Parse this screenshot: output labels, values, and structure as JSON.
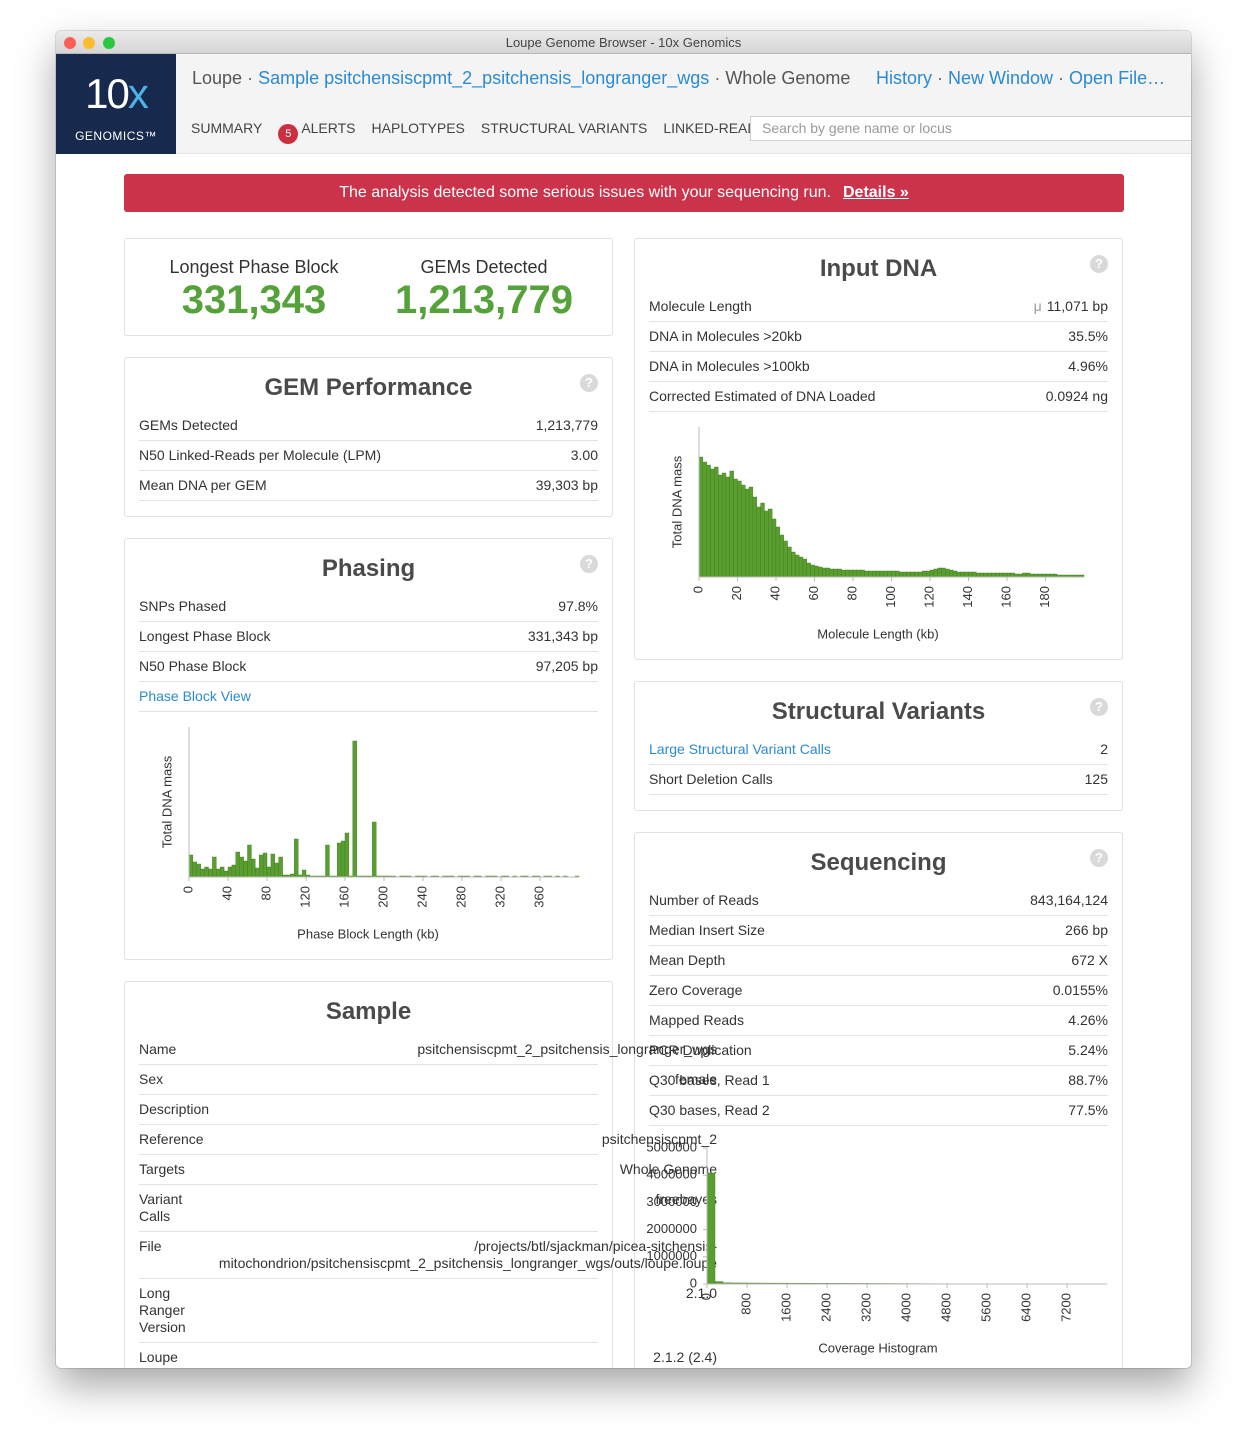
{
  "window": {
    "title": "Loupe Genome Browser - 10x Genomics"
  },
  "logo": {
    "mark": "10",
    "accent": "x",
    "wordmark": "GENOMICS™"
  },
  "header": {
    "crumbs": [
      "Loupe",
      "Sample psitchensiscpmt_2_psitchensis_longranger_wgs",
      "Whole Genome"
    ],
    "separator": "·",
    "actions": [
      "History",
      "New Window",
      "Open File…"
    ]
  },
  "nav": {
    "items": [
      "SUMMARY",
      "ALERTS",
      "HAPLOTYPES",
      "STRUCTURAL VARIANTS",
      "LINKED-READS"
    ],
    "alert_count": "5",
    "search_placeholder": "Search by gene name or locus"
  },
  "alert": {
    "message": "The analysis detected some serious issues with your sequencing run.",
    "link": "Details »"
  },
  "help": "?",
  "highlights": [
    {
      "label": "Longest Phase Block",
      "value": "331,343"
    },
    {
      "label": "GEMs Detected",
      "value": "1,213,779"
    }
  ],
  "gem_performance": {
    "title": "GEM Performance",
    "rows": [
      {
        "label": "GEMs Detected",
        "value": "1,213,779"
      },
      {
        "label": "N50 Linked-Reads per Molecule (LPM)",
        "value": "3.00"
      },
      {
        "label": "Mean DNA per GEM",
        "value": "39,303 bp"
      }
    ]
  },
  "phasing": {
    "title": "Phasing",
    "rows": [
      {
        "label": "SNPs Phased",
        "value": "97.8%"
      },
      {
        "label": "Longest Phase Block",
        "value": "331,343 bp"
      },
      {
        "label": "N50 Phase Block",
        "value": "97,205 bp"
      }
    ],
    "link": "Phase Block View",
    "chart_data": {
      "type": "histogram",
      "x_label": "Phase Block Length (kb)",
      "y_label": "Total DNA mass",
      "color": "#5a9e2f",
      "bins": [
        0,
        4,
        8,
        12,
        16,
        20,
        24,
        28,
        32,
        36,
        40,
        44,
        48,
        52,
        56,
        60,
        64,
        68,
        72,
        76,
        80,
        84,
        88,
        92,
        96,
        100,
        104,
        108,
        112,
        116,
        120,
        124,
        128,
        132,
        136,
        140,
        144,
        148,
        152,
        156,
        160,
        164,
        168,
        172,
        176,
        180,
        184,
        188,
        192,
        196,
        200,
        204,
        208,
        212,
        216,
        220,
        224,
        228,
        232,
        236,
        240,
        244,
        248,
        252,
        256,
        260,
        264,
        268,
        272,
        276,
        280,
        284,
        288,
        292,
        296,
        300,
        304,
        308,
        312,
        316,
        320,
        324,
        328,
        332,
        336,
        340,
        344,
        348,
        352,
        356,
        360,
        364,
        368,
        372,
        376,
        380,
        384,
        388,
        392,
        396,
        400
      ],
      "values": [
        22,
        15,
        13,
        8,
        10,
        8,
        20,
        8,
        10,
        6,
        10,
        12,
        25,
        20,
        16,
        32,
        18,
        9,
        22,
        24,
        10,
        23,
        14,
        20,
        2,
        2,
        3,
        38,
        2,
        7,
        2,
        1,
        1,
        1,
        1,
        32,
        1,
        1,
        34,
        36,
        44,
        1,
        136,
        1,
        1,
        1,
        1,
        55,
        1,
        1,
        1,
        1,
        1,
        0,
        1,
        1,
        1,
        0,
        1,
        1,
        1,
        0,
        1,
        1,
        0,
        1,
        1,
        1,
        0,
        1,
        1,
        1,
        0,
        1,
        1,
        0,
        1,
        1,
        1,
        0,
        1,
        1,
        0,
        1,
        0,
        1,
        1,
        0,
        1,
        1,
        0,
        1,
        1,
        0,
        1,
        0,
        1,
        0,
        0,
        1
      ],
      "xlim": [
        0,
        400
      ],
      "xticks": [
        0,
        40,
        80,
        120,
        160,
        200,
        240,
        280,
        320,
        360
      ],
      "ylim": [
        0,
        150
      ]
    }
  },
  "sample": {
    "title": "Sample",
    "rows": [
      {
        "label": "Name",
        "value": "psitchensiscpmt_2_psitchensis_longranger_wgs"
      },
      {
        "label": "Sex",
        "value": "female"
      },
      {
        "label": "Description"
      },
      {
        "label": "Reference",
        "value": "psitchensiscpmt_2"
      },
      {
        "label": "Targets",
        "value": "Whole Genome"
      },
      {
        "label": "Variant Calls",
        "value": "freebayes"
      },
      {
        "label": "File",
        "value": "/projects/btl/sjackman/picea-sitchensis-mitochondrion/psitchensiscpmt_2_psitchensis_longranger_wgs/outs/loupe.loupe"
      },
      {
        "label": "Long Ranger Version",
        "value": "2.1.0"
      },
      {
        "label": "Loupe",
        "value": "2.1.2 (2.4)"
      }
    ]
  },
  "input_dna": {
    "title": "Input DNA",
    "rows": [
      {
        "label": "Molecule Length",
        "prefix": "μ",
        "value": "11,071 bp"
      },
      {
        "label": "DNA in Molecules >20kb",
        "value": "35.5%"
      },
      {
        "label": "DNA in Molecules >100kb",
        "value": "4.96%"
      },
      {
        "label": "Corrected Estimated of DNA Loaded",
        "value": "0.0924 ng"
      }
    ],
    "chart_data": {
      "type": "histogram",
      "x_label": "Molecule Length (kb)",
      "y_label": "Total DNA mass",
      "color": "#5a9e2f",
      "bins": [
        0,
        2,
        4,
        6,
        8,
        10,
        12,
        14,
        16,
        18,
        20,
        22,
        24,
        26,
        28,
        30,
        32,
        34,
        36,
        38,
        40,
        42,
        44,
        46,
        48,
        50,
        52,
        54,
        56,
        58,
        60,
        62,
        64,
        66,
        68,
        70,
        72,
        74,
        76,
        78,
        80,
        82,
        84,
        86,
        88,
        90,
        92,
        94,
        96,
        98,
        100,
        102,
        104,
        106,
        108,
        110,
        112,
        114,
        116,
        118,
        120,
        122,
        124,
        126,
        128,
        130,
        132,
        134,
        136,
        138,
        140,
        142,
        144,
        146,
        148,
        150,
        152,
        154,
        156,
        158,
        160,
        162,
        164,
        166,
        168,
        170,
        172,
        174,
        176,
        178,
        180,
        182,
        184,
        186,
        188,
        190,
        192,
        194,
        196,
        198,
        200
      ],
      "values": [
        120,
        115,
        112,
        108,
        110,
        102,
        104,
        100,
        106,
        98,
        96,
        92,
        88,
        90,
        80,
        70,
        74,
        66,
        68,
        58,
        50,
        42,
        36,
        30,
        25,
        22,
        20,
        18,
        14,
        12,
        11,
        10,
        9,
        9,
        8,
        8,
        8,
        7,
        7,
        7,
        7,
        7,
        7,
        6,
        6,
        6,
        6,
        6,
        6,
        6,
        6,
        6,
        5,
        5,
        5,
        5,
        5,
        5,
        6,
        6,
        7,
        8,
        9,
        9,
        8,
        7,
        6,
        5,
        5,
        5,
        5,
        5,
        4,
        4,
        4,
        4,
        4,
        4,
        4,
        4,
        4,
        4,
        3,
        3,
        4,
        4,
        3,
        3,
        3,
        3,
        3,
        3,
        3,
        2,
        2,
        2,
        2,
        2,
        2,
        2
      ],
      "xlim": [
        0,
        200
      ],
      "xticks": [
        0,
        20,
        40,
        60,
        80,
        100,
        120,
        140,
        160,
        180
      ],
      "ylim": [
        0,
        150
      ]
    }
  },
  "structural_variants": {
    "title": "Structural Variants",
    "rows": [
      {
        "label": "Large Structural Variant Calls",
        "value": "2",
        "link": true
      },
      {
        "label": "Short Deletion Calls",
        "value": "125"
      }
    ]
  },
  "sequencing": {
    "title": "Sequencing",
    "rows": [
      {
        "label": "Number of Reads",
        "value": "843,164,124"
      },
      {
        "label": "Median Insert Size",
        "value": "266 bp"
      },
      {
        "label": "Mean Depth",
        "value": "672 X"
      },
      {
        "label": "Zero Coverage",
        "value": "0.0155%"
      },
      {
        "label": "Mapped Reads",
        "value": "4.26%"
      },
      {
        "label": "PCR Duplication",
        "value": "5.24%"
      },
      {
        "label": "Q30 bases, Read 1",
        "value": "88.7%"
      },
      {
        "label": "Q30 bases, Read 2",
        "value": "77.5%"
      }
    ],
    "chart_data": {
      "type": "histogram",
      "x_label": "Coverage Histogram",
      "color": "#5a9e2f",
      "bins": [
        0,
        160,
        320,
        480,
        640,
        800,
        960,
        1120,
        1280,
        1440,
        1600,
        1760,
        1920,
        2080,
        2240,
        2400,
        2560,
        2720,
        2880,
        3040,
        3200,
        3360,
        3520,
        3680,
        3840,
        4000,
        4160,
        4320,
        4480,
        4640,
        4800,
        4960,
        5120,
        5280,
        5440,
        5600,
        5760,
        5920,
        6080,
        6240,
        6400,
        6560,
        6720,
        6880,
        7040,
        7200,
        7360,
        7520,
        7680,
        7840,
        8000
      ],
      "values": [
        4080000,
        90000,
        45000,
        40000,
        38000,
        36000,
        35000,
        34000,
        33000,
        32000,
        31000,
        30000,
        29000,
        28000,
        27000,
        26000,
        25000,
        24000,
        23000,
        22000,
        21000,
        20000,
        19000,
        18000,
        17000,
        16000,
        15000,
        14000,
        13000,
        12000,
        12000,
        11000,
        11000,
        10000,
        10000,
        9000,
        9000,
        8000,
        8000,
        7000,
        7000,
        6000,
        6000,
        5000,
        5000,
        5000,
        4000,
        4000,
        4000,
        3000
      ],
      "xlim": [
        0,
        8000
      ],
      "xticks": [
        0,
        800,
        1600,
        2400,
        3200,
        4000,
        4800,
        5600,
        6400,
        7200
      ],
      "ylim": [
        0,
        5000000
      ],
      "yticks": [
        0,
        1000000,
        2000000,
        3000000,
        4000000,
        5000000
      ]
    }
  }
}
